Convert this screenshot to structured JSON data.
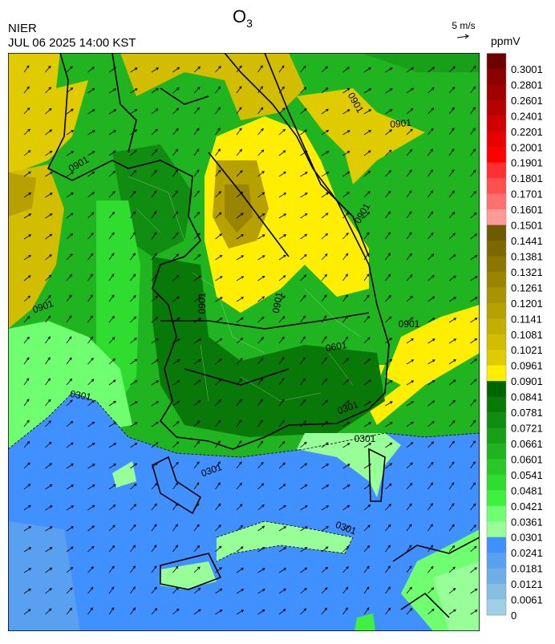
{
  "header": {
    "title": {
      "base": "O",
      "sub": "3"
    },
    "agency": "NIER",
    "datetime": "JUL 06 2025 14:00 KST",
    "wind_scale": "5 m/s"
  },
  "colorbar": {
    "unit": "ppmV",
    "labels": [
      "0.3001",
      "0.2801",
      "0.2601",
      "0.2401",
      "0.2201",
      "0.2001",
      "0.1901",
      "0.1801",
      "0.1701",
      "0.1601",
      "0.1501",
      "0.1441",
      "0.1381",
      "0.1321",
      "0.1261",
      "0.1201",
      "0.1141",
      "0.1081",
      "0.1021",
      "0.0961",
      "0.0901",
      "0.0841",
      "0.0781",
      "0.0721",
      "0.0661",
      "0.0601",
      "0.0541",
      "0.0481",
      "0.0421",
      "0.0361",
      "0.0301",
      "0.0241",
      "0.0181",
      "0.0121",
      "0.0061",
      "0"
    ],
    "colors": [
      "#6e0000",
      "#8b0000",
      "#a00000",
      "#b80000",
      "#d00000",
      "#e80000",
      "#ff0000",
      "#ff3030",
      "#ff5050",
      "#ff7070",
      "#ff9a9a",
      "#6e5a00",
      "#7d6800",
      "#8c7600",
      "#9a8400",
      "#a89300",
      "#b6a100",
      "#c4af00",
      "#d2bd00",
      "#e0cb00",
      "#ffee00",
      "#006400",
      "#087808",
      "#108c10",
      "#18a018",
      "#20b420",
      "#28c828",
      "#30dc30",
      "#40f040",
      "#70ff70",
      "#98ff98",
      "#4090ff",
      "#5aa0f0",
      "#70aee8",
      "#88bee0",
      "#a0d0e8"
    ]
  },
  "contour_labels": [
    "0901",
    "0901",
    "0901",
    "0901",
    "0901",
    "0901",
    "0901",
    "0901",
    "0601",
    "0301",
    "0301",
    "0301",
    "0301",
    "0301"
  ]
}
